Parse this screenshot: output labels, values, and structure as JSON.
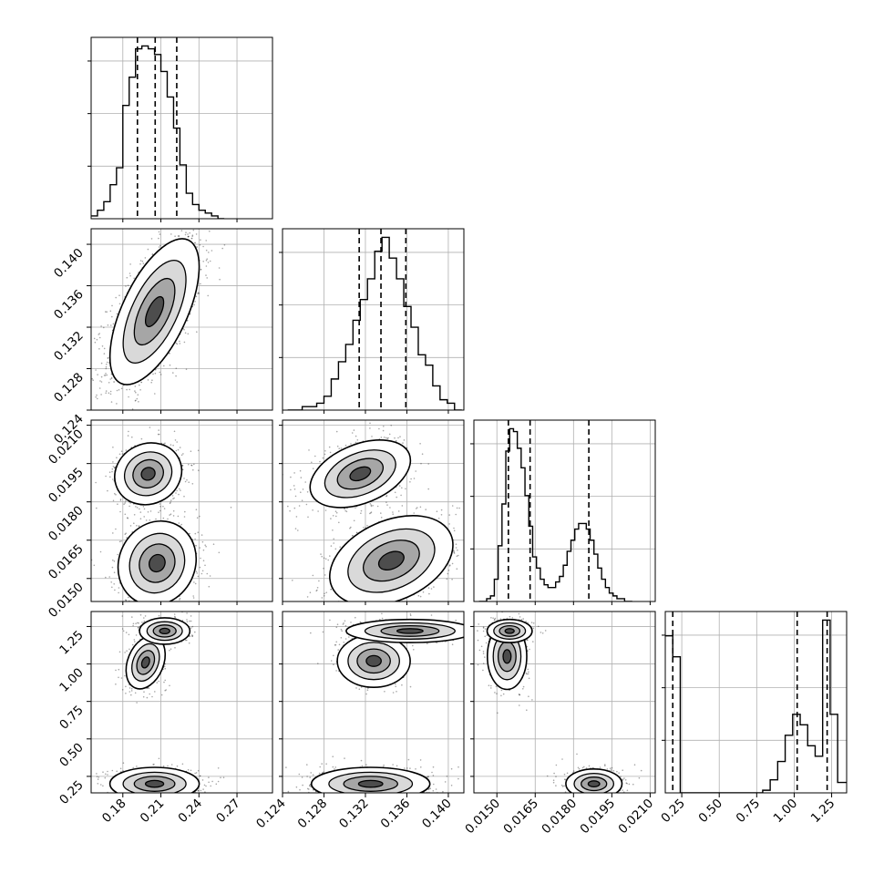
{
  "chart_data": {
    "type": "corner",
    "grid": true,
    "parameters": [
      {
        "id": "p1",
        "range": [
          0.155,
          0.298
        ],
        "ticks": [
          "0.18",
          "0.21",
          "0.24",
          "0.27"
        ],
        "tick_values": [
          0.18,
          0.21,
          0.24,
          0.27
        ],
        "quantiles": [
          0.1915,
          0.2055,
          0.2225
        ]
      },
      {
        "id": "p2",
        "range": [
          0.124,
          0.1415
        ],
        "ticks": [
          "0.124",
          "0.128",
          "0.132",
          "0.136",
          "0.140"
        ],
        "tick_values": [
          0.124,
          0.128,
          0.132,
          0.136,
          0.14
        ],
        "quantiles": [
          0.1314,
          0.1335,
          0.1359
        ]
      },
      {
        "id": "p3",
        "range": [
          0.0141,
          0.0212
        ],
        "ticks": [
          "0.0150",
          "0.0165",
          "0.0180",
          "0.0195",
          "0.0210"
        ],
        "tick_values": [
          0.015,
          0.0165,
          0.018,
          0.0195,
          0.021
        ],
        "quantiles": [
          0.01545,
          0.0163,
          0.0186
        ]
      },
      {
        "id": "p4",
        "range": [
          0.14,
          1.35
        ],
        "ticks": [
          "0.25",
          "0.50",
          "0.75",
          "1.00",
          "1.25"
        ],
        "tick_values": [
          0.25,
          0.5,
          0.75,
          1.0,
          1.25
        ],
        "quantiles": [
          0.19,
          1.02,
          1.22
        ]
      }
    ],
    "histograms": [
      {
        "param": "p1",
        "bin_edges": [
          0.155,
          0.16,
          0.165,
          0.17,
          0.175,
          0.18,
          0.185,
          0.19,
          0.195,
          0.2,
          0.205,
          0.21,
          0.215,
          0.22,
          0.225,
          0.23,
          0.235,
          0.24,
          0.245,
          0.25,
          0.255,
          0.26
        ],
        "counts": [
          1,
          3,
          6,
          12,
          18,
          40,
          50,
          60,
          61,
          60,
          58,
          52,
          43,
          32,
          19,
          9,
          5,
          3,
          2,
          1,
          0
        ]
      },
      {
        "param": "p2",
        "bin_edges": [
          0.1245,
          0.1252,
          0.1259,
          0.1266,
          0.1273,
          0.128,
          0.1287,
          0.1294,
          0.1301,
          0.1308,
          0.1315,
          0.1322,
          0.1329,
          0.1336,
          0.1343,
          0.135,
          0.1357,
          0.1364,
          0.1371,
          0.1378,
          0.1385,
          0.1392,
          0.1399,
          0.1406,
          0.1413
        ],
        "counts": [
          0,
          0,
          1,
          1,
          2,
          4,
          9,
          14,
          19,
          26,
          32,
          38,
          46,
          50,
          44,
          38,
          30,
          24,
          16,
          13,
          7,
          3,
          2,
          0
        ]
      },
      {
        "param": "p3",
        "bin_edges": [
          0.0143,
          0.01445,
          0.0146,
          0.01475,
          0.0149,
          0.01505,
          0.0152,
          0.01535,
          0.0155,
          0.01565,
          0.0158,
          0.01595,
          0.0161,
          0.01625,
          0.0164,
          0.01655,
          0.0167,
          0.01685,
          0.017,
          0.01715,
          0.0173,
          0.01745,
          0.0176,
          0.01775,
          0.0179,
          0.01805,
          0.0182,
          0.01835,
          0.0185,
          0.01865,
          0.0188,
          0.01895,
          0.0191,
          0.01925,
          0.0194,
          0.01955,
          0.0197,
          0.01985,
          0.02,
          0.02015,
          0.0203
        ],
        "counts": [
          0,
          0,
          1,
          2,
          8,
          20,
          35,
          54,
          62,
          61,
          55,
          48,
          38,
          27,
          16,
          12,
          8,
          6,
          5,
          5,
          7,
          9,
          13,
          18,
          22,
          26,
          28,
          28,
          26,
          22,
          17,
          12,
          8,
          5,
          3,
          2,
          1,
          1,
          0,
          0
        ]
      },
      {
        "param": "p4",
        "bin_edges": [
          0.14,
          0.19,
          0.24,
          0.29,
          0.34,
          0.39,
          0.44,
          0.49,
          0.54,
          0.59,
          0.64,
          0.69,
          0.74,
          0.79,
          0.84,
          0.89,
          0.94,
          0.99,
          1.04,
          1.09,
          1.14,
          1.19,
          1.24,
          1.29,
          1.35
        ],
        "counts": [
          60,
          52,
          0,
          0,
          0,
          0,
          0,
          0,
          0,
          0,
          0,
          0,
          0,
          1,
          5,
          12,
          22,
          30,
          26,
          18,
          14,
          66,
          30,
          4
        ]
      }
    ],
    "scatter_panels": [
      {
        "x": "p1",
        "y": "p2",
        "clusters": [
          {
            "cx": 0.205,
            "cy": 0.1335,
            "sx": 0.016,
            "sy": 0.0032,
            "rho": 0.62,
            "weight": 1.0
          }
        ]
      },
      {
        "x": "p1",
        "y": "p3",
        "clusters": [
          {
            "cx": 0.2,
            "cy": 0.0191,
            "sx": 0.012,
            "sy": 0.00055,
            "rho": 0.1,
            "weight": 0.45
          },
          {
            "cx": 0.207,
            "cy": 0.0156,
            "sx": 0.014,
            "sy": 0.00075,
            "rho": 0.1,
            "weight": 0.55
          }
        ]
      },
      {
        "x": "p2",
        "y": "p3",
        "clusters": [
          {
            "cx": 0.1315,
            "cy": 0.0191,
            "sx": 0.0022,
            "sy": 0.0006,
            "rho": 0.4,
            "weight": 0.45
          },
          {
            "cx": 0.1345,
            "cy": 0.0157,
            "sx": 0.0027,
            "sy": 0.0008,
            "rho": 0.35,
            "weight": 0.55
          }
        ]
      },
      {
        "x": "p1",
        "y": "p4",
        "clusters": [
          {
            "cx": 0.198,
            "cy": 1.01,
            "sx": 0.007,
            "sy": 0.08,
            "rho": 0.3,
            "weight": 0.25
          },
          {
            "cx": 0.213,
            "cy": 1.22,
            "sx": 0.009,
            "sy": 0.04,
            "rho": 0.0,
            "weight": 0.3
          },
          {
            "cx": 0.205,
            "cy": 0.2,
            "sx": 0.016,
            "sy": 0.05,
            "rho": 0.0,
            "weight": 0.45
          }
        ]
      },
      {
        "x": "p2",
        "y": "p4",
        "clusters": [
          {
            "cx": 0.1328,
            "cy": 1.02,
            "sx": 0.0016,
            "sy": 0.08,
            "rho": 0.0,
            "weight": 0.25
          },
          {
            "cx": 0.1363,
            "cy": 1.22,
            "sx": 0.0028,
            "sy": 0.035,
            "rho": 0.0,
            "weight": 0.3
          },
          {
            "cx": 0.1325,
            "cy": 0.2,
            "sx": 0.0026,
            "sy": 0.05,
            "rho": 0.0,
            "weight": 0.45
          }
        ]
      },
      {
        "x": "p3",
        "y": "p4",
        "clusters": [
          {
            "cx": 0.0154,
            "cy": 1.05,
            "sx": 0.00035,
            "sy": 0.1,
            "rho": 0.0,
            "weight": 0.3
          },
          {
            "cx": 0.0155,
            "cy": 1.22,
            "sx": 0.0004,
            "sy": 0.035,
            "rho": 0.0,
            "weight": 0.25
          },
          {
            "cx": 0.0188,
            "cy": 0.2,
            "sx": 0.0005,
            "sy": 0.045,
            "rho": 0.0,
            "weight": 0.45
          }
        ]
      }
    ]
  },
  "colors": {
    "axes": "#000000",
    "grid": "#b0b0b0",
    "scatter": "#000000",
    "line": "#000000"
  }
}
